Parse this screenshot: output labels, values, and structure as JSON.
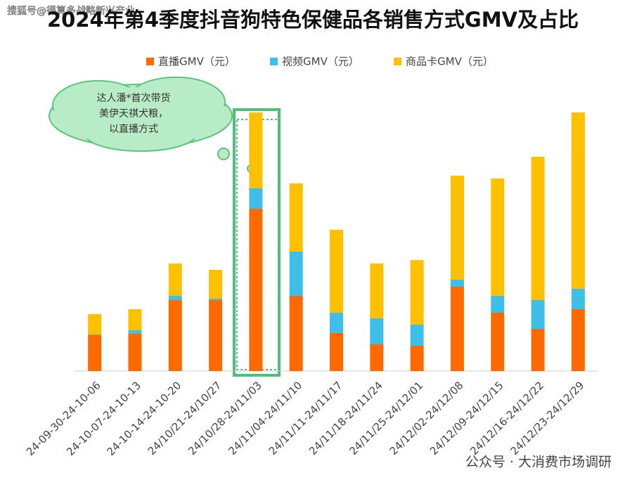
{
  "header": {
    "watermark": "搜狐号@得算多战略新兴产业"
  },
  "chart_data": {
    "type": "stacked-bar",
    "title": "2024年第4季度抖音狗特色保健品各销售方式GMV及占比",
    "categories": [
      "24-09-30-24-10-06",
      "24-10-07-24-10-13",
      "24-10-14-24-10-20",
      "24/10/21-24/10/27",
      "24/10/28-24/11/03",
      "24/11/04-24/11/10",
      "24/11/11-24/11/17",
      "24/11/18-24/11/24",
      "24/11/25-24/12/01",
      "24/12/02-24/12/08",
      "24/12/09-24/12/15",
      "24/12/16-24/12/22",
      "24/12/23-24/12/29"
    ],
    "series": [
      {
        "name": "直播GMV（元）",
        "color": "#ff6a00",
        "values": [
          51,
          53,
          101,
          101,
          231,
          107,
          54,
          38,
          36,
          120,
          83,
          60,
          88
        ]
      },
      {
        "name": "视频GMV（元）",
        "color": "#3dbfe8",
        "values": [
          1,
          5,
          6,
          2,
          29,
          63,
          29,
          37,
          30,
          10,
          24,
          41,
          29
        ]
      },
      {
        "name": "商品卡GMV（元）",
        "color": "#ffc000",
        "values": [
          29,
          30,
          46,
          41,
          108,
          97,
          118,
          78,
          92,
          148,
          167,
          204,
          251
        ]
      }
    ],
    "ylim": [
      0,
      380
    ],
    "annotation": [
      "达人潘*首次带货",
      "美伊天祺犬粮，",
      "以直播方式"
    ]
  },
  "footer": {
    "source": "公众号 · 大消费市场调研"
  }
}
